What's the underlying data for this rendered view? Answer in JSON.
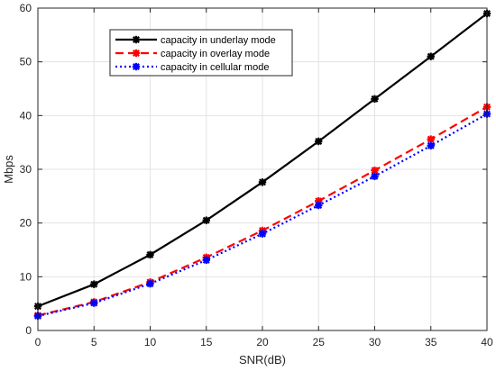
{
  "chart_data": {
    "type": "line",
    "x": [
      0,
      5,
      10,
      15,
      20,
      25,
      30,
      35,
      40
    ],
    "xlabel": "SNR(dB)",
    "ylabel": "Mbps",
    "xlim": [
      0,
      40
    ],
    "ylim": [
      0,
      60
    ],
    "xticks": [
      0,
      5,
      10,
      15,
      20,
      25,
      30,
      35,
      40
    ],
    "yticks": [
      0,
      10,
      20,
      30,
      40,
      50,
      60
    ],
    "grid": true,
    "legend_position": "upper-left",
    "series": [
      {
        "name": "capacity in underlay mode",
        "values": [
          4.5,
          8.6,
          14.1,
          20.5,
          27.6,
          35.2,
          43.1,
          51.0,
          59.0
        ],
        "color": "#000000",
        "line_style": "solid",
        "marker": "asterisk"
      },
      {
        "name": "capacity in overlay mode",
        "values": [
          2.8,
          5.3,
          9.0,
          13.6,
          18.6,
          24.1,
          29.8,
          35.6,
          41.6
        ],
        "color": "#ff0000",
        "line_style": "dashed",
        "marker": "asterisk"
      },
      {
        "name": "capacity in cellular mode",
        "values": [
          2.7,
          5.1,
          8.7,
          13.1,
          18.0,
          23.3,
          28.7,
          34.4,
          40.3
        ],
        "color": "#0000ff",
        "line_style": "dotted",
        "marker": "asterisk"
      }
    ]
  }
}
